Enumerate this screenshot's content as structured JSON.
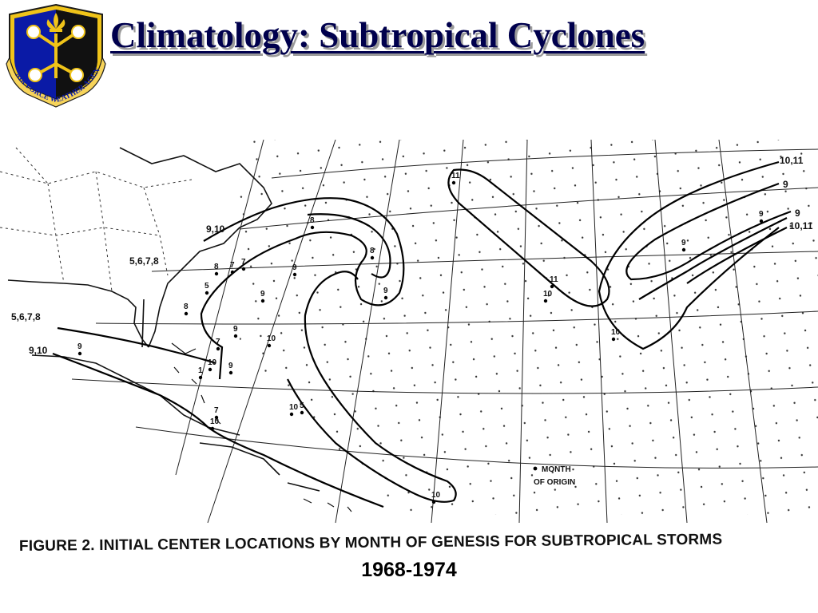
{
  "header": {
    "title": "Climatology: Subtropical Cyclones",
    "logo_text": "AIR FORCE WEATHER AGENCY"
  },
  "figure": {
    "caption": "FIGURE 2. INITIAL CENTER LOCATIONS BY MONTH OF GENESIS FOR SUBTROPICAL STORMS",
    "years": "1968-1974",
    "legend_label_1": "MONTH",
    "legend_label_2": "OF ORIGIN",
    "contour_labels": {
      "c1": "10,11",
      "c2": "9",
      "c3": "9",
      "c4": "10,11",
      "c5": "9,10",
      "c6": "5,6,7,8",
      "c7": "5,6,7,8",
      "c8": "9,10"
    },
    "month_markers": [
      {
        "id": "m-11a",
        "label": "11"
      },
      {
        "id": "m-8a",
        "label": "8"
      },
      {
        "id": "m-8b",
        "label": "8"
      },
      {
        "id": "m-9a",
        "label": "9"
      },
      {
        "id": "m-9b",
        "label": "9"
      },
      {
        "id": "m-9c",
        "label": "9"
      },
      {
        "id": "m-9d",
        "label": "9"
      },
      {
        "id": "m-9e",
        "label": "9"
      },
      {
        "id": "m-9f",
        "label": "9"
      },
      {
        "id": "m-9g",
        "label": "9"
      },
      {
        "id": "m-9h",
        "label": "9"
      },
      {
        "id": "m-11b",
        "label": "11"
      },
      {
        "id": "m-10a",
        "label": "10"
      },
      {
        "id": "m-10b",
        "label": "10"
      },
      {
        "id": "m-10c",
        "label": "10"
      },
      {
        "id": "m-10d",
        "label": "10"
      },
      {
        "id": "m-10e",
        "label": "10"
      },
      {
        "id": "m-10f",
        "label": "10"
      },
      {
        "id": "m-10g",
        "label": "10"
      },
      {
        "id": "m-5a",
        "label": "5"
      },
      {
        "id": "m-5b",
        "label": "5"
      },
      {
        "id": "m-7a",
        "label": "7"
      },
      {
        "id": "m-7b",
        "label": "7"
      },
      {
        "id": "m-7c",
        "label": "7"
      },
      {
        "id": "m-8c",
        "label": "8"
      },
      {
        "id": "m-8d",
        "label": "8"
      },
      {
        "id": "m-1a",
        "label": "1"
      },
      {
        "id": "m-7d",
        "label": "7"
      }
    ]
  }
}
